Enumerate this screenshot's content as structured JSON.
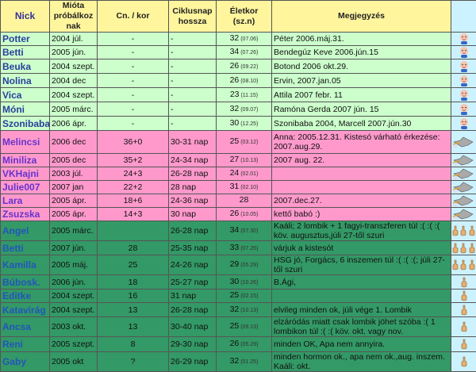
{
  "header": {
    "nick": "Nick",
    "since": "Mióta próbálkoz nak",
    "cn": "Cn. / kor",
    "cycle": "Ciklusnap hossza",
    "age": "Életkor (sz.n)",
    "note": "Megjegyzés"
  },
  "colors": {
    "header": "#fff59d",
    "babies": "#ccffcc",
    "pregnant": "#ff99cc",
    "trying": "#339966",
    "icon_col": "#ccf2ff"
  },
  "groups": [
    {
      "class": "g1",
      "icon": "baby-icon",
      "rows": [
        {
          "nick": "Potter",
          "since": "2004 júl.",
          "cn": "-",
          "cycle": "-",
          "age": "32",
          "bday": "(07.06)",
          "note": "Péter 2006.máj.31."
        },
        {
          "nick": "Betti",
          "since": "2005 jún.",
          "cn": "-",
          "cycle": "-",
          "age": "34",
          "bday": "(07.26)",
          "note": "Bendegúz Keve 2006.jún.15"
        },
        {
          "nick": "Beuka",
          "since": "2004 szept.",
          "cn": "-",
          "cycle": "-",
          "age": "26",
          "bday": "(09.22)",
          "note": "Botond 2006 okt.29."
        },
        {
          "nick": "Nolina",
          "since": "2004 dec",
          "cn": "-",
          "cycle": "-",
          "age": "26",
          "bday": "(08.10)",
          "note": "Ervin, 2007.jan.05"
        },
        {
          "nick": "Vica",
          "since": "2004 szept.",
          "cn": "-",
          "cycle": "-",
          "age": "23",
          "bday": "(11.15)",
          "note": "Attila 2007 febr. 11"
        },
        {
          "nick": "Móni",
          "since": "2005 márc.",
          "cn": "-",
          "cycle": "-",
          "age": "32",
          "bday": "(09.07)",
          "note": "Ramóna Gerda 2007 jún. 15"
        },
        {
          "nick": "Szonibaba",
          "since": "2006 ápr.",
          "cn": "-",
          "cycle": "-",
          "age": "30",
          "bday": "(12.25)",
          "note": "Szonibaba 2004, Marcell 2007.jún.30"
        }
      ]
    },
    {
      "class": "p",
      "icon": "stork-icon",
      "rows": [
        {
          "nick": "Melincsi",
          "since": "2006 dec",
          "cn": "36+0",
          "cycle": "30-31 nap",
          "age": "25",
          "bday": "(03.12)",
          "note": "Anna: 2005.12.31. Kistesó várható érkezése: 2007.aug.29."
        },
        {
          "nick": "Miniliza",
          "since": "2005 dec",
          "cn": "35+2",
          "cycle": "24-34 nap",
          "age": "27",
          "bday": "(10.13)",
          "note": "2007 aug. 22."
        },
        {
          "nick": "VKHajni",
          "since": "2003 júl.",
          "cn": "24+3",
          "cycle": "26-28 nap",
          "age": "24",
          "bday": "(02.01)",
          "note": ""
        },
        {
          "nick": "Julie007",
          "since": "2007 jan",
          "cn": "22+2",
          "cycle": "28 nap",
          "age": "31",
          "bday": "(02.10)",
          "note": ""
        },
        {
          "nick": "Lara",
          "since": "2005 ápr.",
          "cn": "18+6",
          "cycle": "24-36 nap",
          "age": "28",
          "bday": "",
          "note": "2007.dec.27."
        },
        {
          "nick": "Zsuzska",
          "since": "2005 ápr.",
          "cn": "14+3",
          "cycle": "30 nap",
          "age": "26",
          "bday": "(10.05)",
          "note": " kettő babó :)"
        }
      ]
    },
    {
      "class": "g2",
      "icon": "crossed-fingers-icon",
      "rows": [
        {
          "nick": "Angel",
          "since": "2005 márc.",
          "cn": "",
          "cycle": "26-28 nap",
          "age": "34",
          "bday": "(07.30)",
          "note": "Kaáli; 2 lombik + 1 fagyi-transzferen túl :( :( :( köv. augusztus,júli 27-től szuri",
          "fingers": 3
        },
        {
          "nick": "Betti",
          "since": "2007 jún.",
          "cn": "28",
          "cycle": "25-35 nap",
          "age": "33",
          "bday": "(07.26)",
          "note": "várjuk a kistesót",
          "fingers": 3
        },
        {
          "nick": "Kamilla",
          "since": "2005 máj.",
          "cn": "25",
          "cycle": "24-26 nap",
          "age": "29",
          "bday": "(05.29)",
          "note": "HSG jó, Forgács, 6 inszemen túl :( :( :(; júli 27-től szuri",
          "fingers": 3
        },
        {
          "nick": "Búbosk.",
          "since": "2006 jún.",
          "cn": "18",
          "cycle": "25-27 nap",
          "age": "30",
          "bday": "(10.26)",
          "note": "B.Ági,",
          "fingers": 1
        },
        {
          "nick": "Editke",
          "since": "2004 szept.",
          "cn": "16",
          "cycle": "31 nap",
          "age": "25",
          "bday": "(02.15)",
          "note": "",
          "fingers": 1
        },
        {
          "nick": "Katavirág",
          "since": "2004 szept.",
          "cn": "13",
          "cycle": "26-28 nap",
          "age": "32",
          "bday": "(10.13)",
          "note": "elvileg minden ok, júli vége 1. Lombik",
          "fingers": 1
        },
        {
          "nick": "Ancsa",
          "since": "2003 okt.",
          "cn": "13",
          "cycle": "30-40 nap",
          "age": "25",
          "bday": "(09.13)",
          "note": "elzáródás miatt csak lombik jöhet szóba :( 1 lombikon túl :( :( köv. okt. vagy nov.",
          "fingers": 1
        },
        {
          "nick": "Reni",
          "since": "2005 szept.",
          "cn": "8",
          "cycle": "29-30 nap",
          "age": "26",
          "bday": "(05.29)",
          "note": "minden OK, Apa nem annyira.",
          "fingers": 1
        },
        {
          "nick": "Gaby",
          "since": "2005 okt",
          "cn": "?",
          "cycle": "26-29 nap",
          "age": "32",
          "bday": "(01.25)",
          "note": "minden hormon ok., apa nem ok.,aug. inszem. Kaáli: okt.",
          "fingers": 1
        }
      ]
    }
  ]
}
